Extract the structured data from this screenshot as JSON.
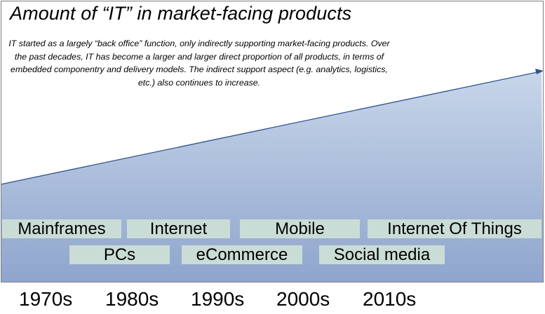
{
  "title": "Amount of “IT” in market-facing products",
  "description": "IT started as a largely “back office” function, only indirectly supporting market-facing products. Over the past decades, IT has become a larger and larger direct proportion of all products, in terms of embedded componentry and delivery models. The indirect support aspect (e.g. analytics, logistics, etc.) also continues to increase.",
  "eras_top": [
    "Mainframes",
    "Internet",
    "Mobile",
    "Internet Of Things"
  ],
  "eras_bottom": [
    "PCs",
    "eCommerce",
    "Social media"
  ],
  "decades": [
    "1970s",
    "1980s",
    "1990s",
    "2000s",
    "2010s"
  ],
  "colors": {
    "area_top": "#c5d3e8",
    "area_bottom": "#8ea4cc",
    "area_line": "#2f528f",
    "label_bg": "#ccded6"
  },
  "trend": "increasing"
}
